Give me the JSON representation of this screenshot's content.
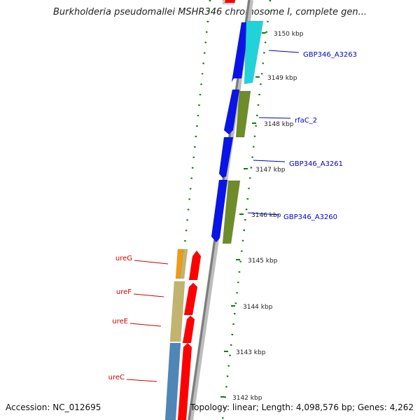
{
  "title": "Burkholderia pseudomallei MSHR346 chromosome I, complete gen...",
  "footer": {
    "accession": "Accession: NC_012695",
    "topology": "Topology: linear; Length: 4,098,576 bp; Genes: 4,262"
  },
  "scale_ticks": [
    {
      "label": "3150 kbp"
    },
    {
      "label": "3149 kbp"
    },
    {
      "label": "3148 kbp"
    },
    {
      "label": "3147 kbp"
    },
    {
      "label": "3146 kbp"
    },
    {
      "label": "3145 kbp"
    },
    {
      "label": "3144 kbp"
    },
    {
      "label": "3143 kbp"
    },
    {
      "label": "3142 kbp"
    }
  ],
  "gene_labels_right": [
    {
      "name": "GBP346_A3263",
      "color": "#0000cc"
    },
    {
      "name": "rfaC_2",
      "color": "#0000cc"
    },
    {
      "name": "GBP346_A3261",
      "color": "#0000cc"
    },
    {
      "name": "GBP346_A3260",
      "color": "#0000cc"
    }
  ],
  "gene_labels_left": [
    {
      "name": "ureG",
      "color": "#cc0000"
    },
    {
      "name": "ureF",
      "color": "#cc0000"
    },
    {
      "name": "ureE",
      "color": "#cc0000"
    },
    {
      "name": "ureC",
      "color": "#cc0000"
    }
  ],
  "colors": {
    "cds_upper": "#0a14e6",
    "cds_lower": "#ff0000",
    "cyan": "#21d2d8",
    "olive": "#6e8c2a",
    "orange": "#f39a12",
    "khaki": "#c2b46e",
    "steel": "#4f86b8",
    "backbone": "#8a8a8a",
    "tick_green": "#0f7a0f"
  }
}
